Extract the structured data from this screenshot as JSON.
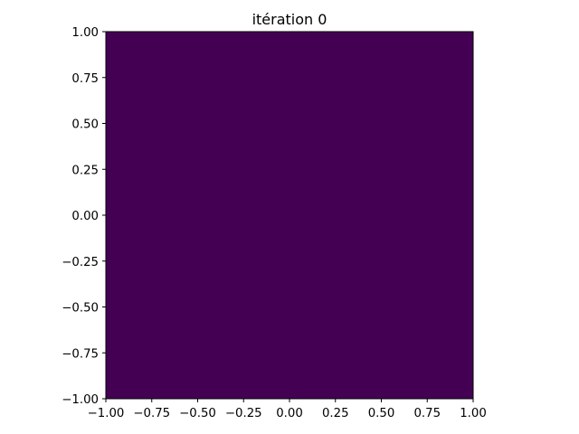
{
  "chart_data": {
    "type": "heatmap",
    "title": "itération 0",
    "xlabel": "",
    "ylabel": "",
    "xlim": [
      -1.0,
      1.0
    ],
    "ylim": [
      -1.0,
      1.0
    ],
    "xticks": [
      -1.0,
      -0.75,
      -0.5,
      -0.25,
      0.0,
      0.25,
      0.5,
      0.75,
      1.0
    ],
    "yticks": [
      -1.0,
      -0.75,
      -0.5,
      -0.25,
      0.0,
      0.25,
      0.5,
      0.75,
      1.0
    ],
    "xtick_labels": [
      "−1.00",
      "−0.75",
      "−0.50",
      "−0.25",
      "0.00",
      "0.25",
      "0.50",
      "0.75",
      "1.00"
    ],
    "ytick_labels": [
      "−1.00",
      "−0.75",
      "−0.50",
      "−0.25",
      "0.00",
      "0.25",
      "0.50",
      "0.75",
      "1.00"
    ],
    "field": {
      "description_of_values": "uniform field",
      "color": "#440154",
      "colormap": "viridis"
    },
    "grid": false
  }
}
